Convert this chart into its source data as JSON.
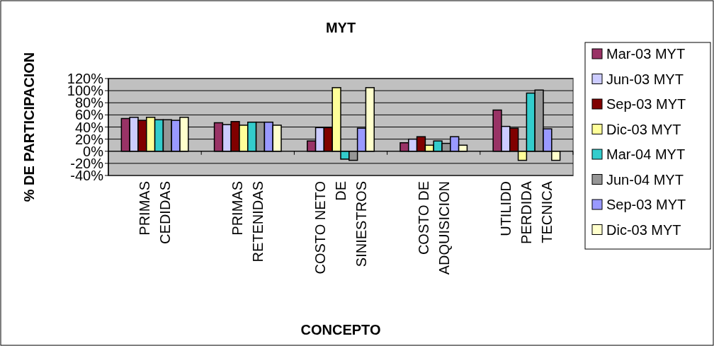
{
  "chart_data": {
    "type": "bar",
    "title": "MYT",
    "xlabel": "CONCEPTO",
    "ylabel": "% DE PARTICIPACION",
    "categories": [
      "PRIMAS CEDIDAS",
      "PRIMAS RETENIDAS",
      "COSTO NETO DE SINIESTROS",
      "COSTO DE ADQUISICION",
      "UTILIDD PERDIDA TECNICA"
    ],
    "series": [
      {
        "name": "Mar-03 MYT",
        "color": "#993366",
        "values": [
          54,
          47,
          17,
          14,
          68
        ]
      },
      {
        "name": "Jun-03 MYT",
        "color": "#ccccff",
        "values": [
          56,
          44,
          39,
          20,
          41
        ]
      },
      {
        "name": "Sep-03 MYT",
        "color": "#800000",
        "values": [
          51,
          49,
          39,
          24,
          38
        ]
      },
      {
        "name": "Dic-03 MYT",
        "color": "#ffff99",
        "values": [
          56,
          43,
          105,
          10,
          -15
        ]
      },
      {
        "name": "Mar-04 MYT",
        "color": "#33cccc",
        "values": [
          52,
          48,
          -13,
          17,
          96
        ]
      },
      {
        "name": "Jun-04 MYT",
        "color": "#969696",
        "values": [
          52,
          48,
          -15,
          13,
          101
        ]
      },
      {
        "name": "Sep-03 MYT",
        "color": "#9999ff",
        "values": [
          51,
          48,
          38,
          24,
          37
        ]
      },
      {
        "name": "Dic-03 MYT",
        "color": "#ffffcc",
        "values": [
          56,
          43,
          105,
          10,
          -15
        ]
      }
    ],
    "ylim": [
      -40,
      120
    ],
    "yticks": [
      {
        "value": -40,
        "label": "-40%"
      },
      {
        "value": -20,
        "label": "-20%"
      },
      {
        "value": 0,
        "label": "0%"
      },
      {
        "value": 20,
        "label": "20%"
      },
      {
        "value": 40,
        "label": "40%"
      },
      {
        "value": 60,
        "label": "60%"
      },
      {
        "value": 80,
        "label": "80%"
      },
      {
        "value": 100,
        "label": "100%"
      },
      {
        "value": 120,
        "label": "120%"
      }
    ],
    "grid": "y",
    "legend": "right"
  }
}
